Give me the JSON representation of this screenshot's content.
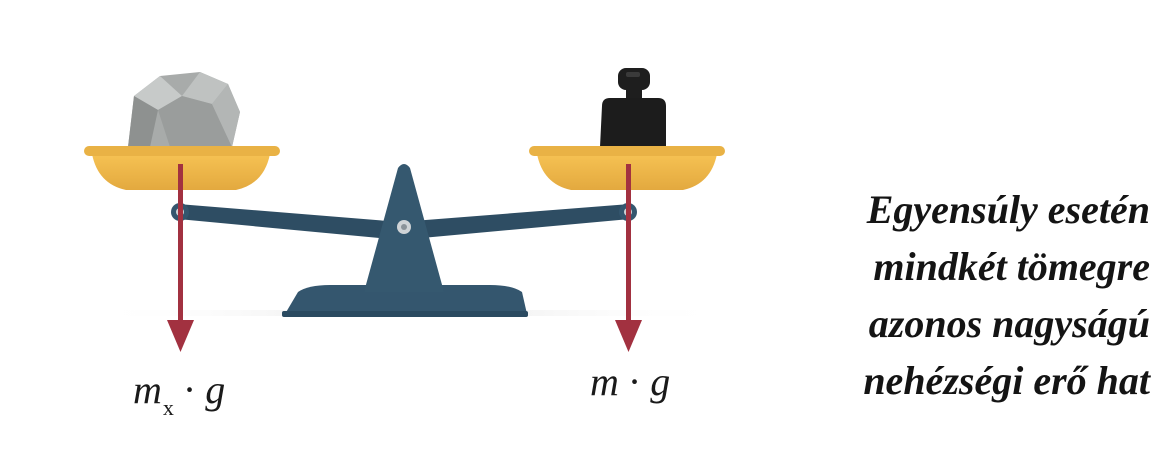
{
  "left_label": {
    "m": "m",
    "sub": "x",
    "dot": "·",
    "g": "g"
  },
  "right_label": {
    "m": "m",
    "dot": "·",
    "g": "g"
  },
  "caption": [
    "Egyensúly esetén",
    "mindkét tömegre",
    "azonos nagyságú",
    "nehézségi erő hat"
  ],
  "colors": {
    "scale_body": "#34566e",
    "pan": "#e8b547",
    "arrow": "#a23140",
    "rock": "#a9acaa",
    "weight": "#1c1c1c"
  },
  "icons": {
    "rock": "rock-icon",
    "weight": "weight-icon"
  }
}
